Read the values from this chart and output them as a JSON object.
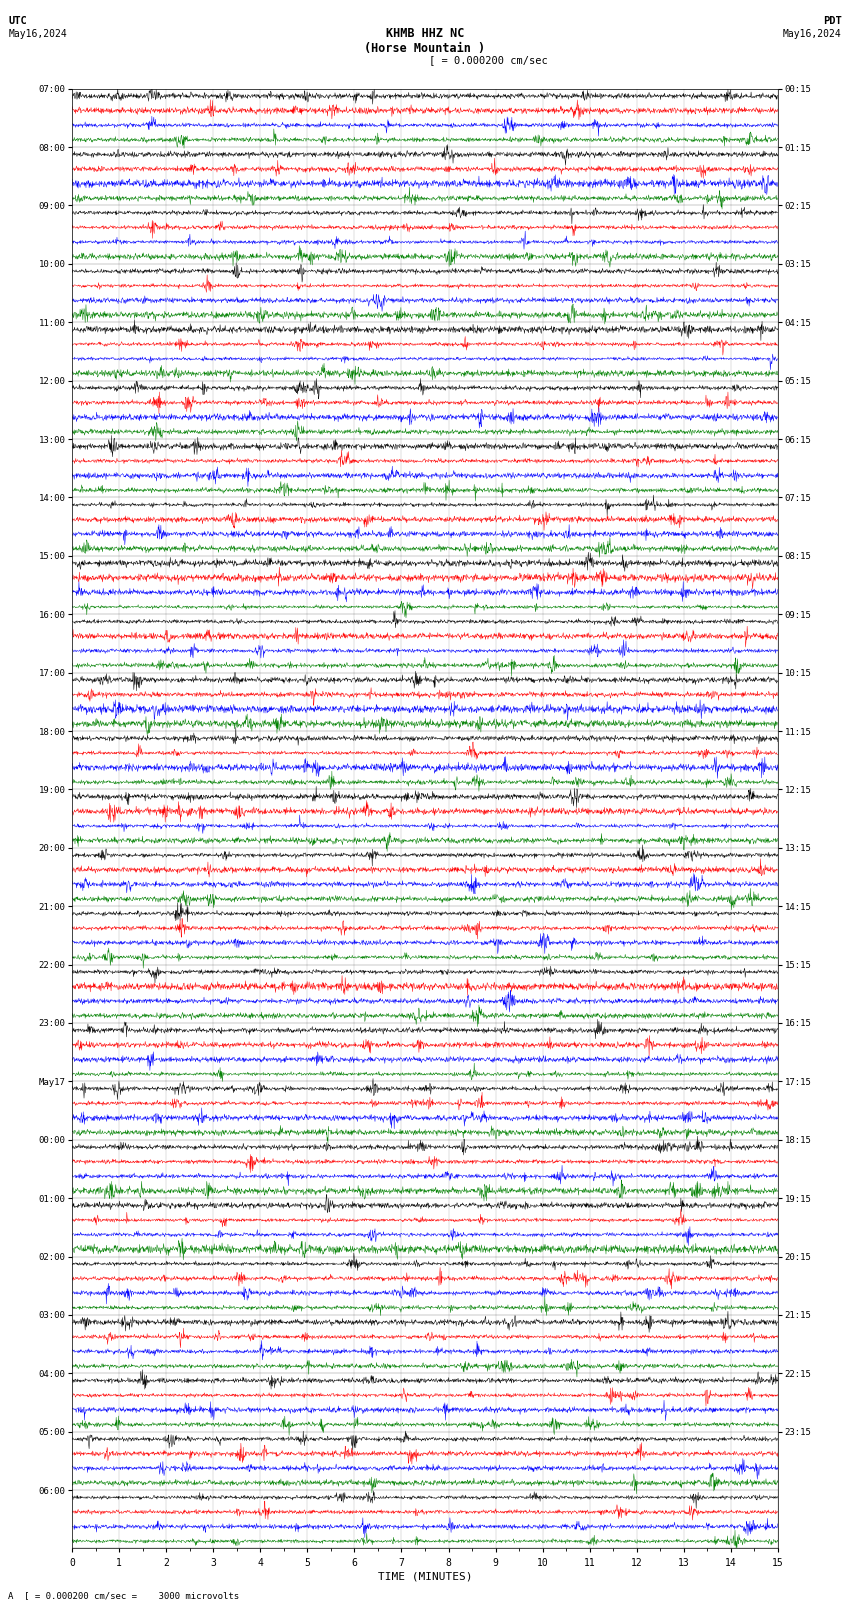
{
  "title_line1": "KHMB HHZ NC",
  "title_line2": "(Horse Mountain )",
  "scale_text": "= 0.000200 cm/sec",
  "left_label_top": "UTC",
  "left_label_date": "May16,2024",
  "right_label_top": "PDT",
  "right_label_date": "May16,2024",
  "bottom_label": "TIME (MINUTES)",
  "footer_text": "A  [ = 0.000200 cm/sec =    3000 microvolts",
  "xlabel_ticks": [
    0,
    1,
    2,
    3,
    4,
    5,
    6,
    7,
    8,
    9,
    10,
    11,
    12,
    13,
    14,
    15
  ],
  "left_times": [
    "07:00",
    "08:00",
    "09:00",
    "10:00",
    "11:00",
    "12:00",
    "13:00",
    "14:00",
    "15:00",
    "16:00",
    "17:00",
    "18:00",
    "19:00",
    "20:00",
    "21:00",
    "22:00",
    "23:00",
    "May17",
    "00:00",
    "01:00",
    "02:00",
    "03:00",
    "04:00",
    "05:00",
    "06:00"
  ],
  "right_times": [
    "00:15",
    "01:15",
    "02:15",
    "03:15",
    "04:15",
    "05:15",
    "06:15",
    "07:15",
    "08:15",
    "09:15",
    "10:15",
    "11:15",
    "12:15",
    "13:15",
    "14:15",
    "15:15",
    "16:15",
    "17:15",
    "18:15",
    "19:15",
    "20:15",
    "21:15",
    "22:15",
    "23:15"
  ],
  "n_rows": 25,
  "traces_per_row": 4,
  "colors": [
    "black",
    "red",
    "blue",
    "green"
  ],
  "bg_color": "white",
  "fig_width": 8.5,
  "fig_height": 16.13,
  "dpi": 100
}
